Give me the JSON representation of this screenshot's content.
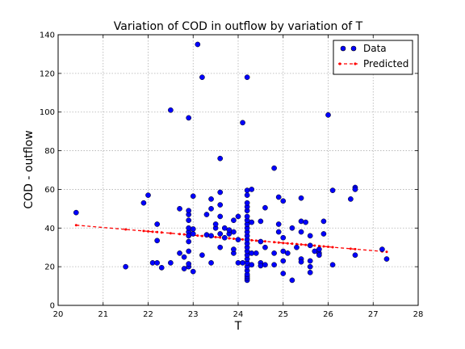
{
  "chart_data": {
    "type": "scatter",
    "title": "Variation of COD in outflow by variation of T",
    "xlabel": "T",
    "ylabel": "COD - outflow",
    "xlim": [
      20,
      28
    ],
    "ylim": [
      0,
      140
    ],
    "xticks": [
      "20",
      "21",
      "22",
      "23",
      "24",
      "25",
      "26",
      "27",
      "28"
    ],
    "yticks": [
      "0",
      "20",
      "40",
      "60",
      "80",
      "100",
      "120",
      "140"
    ],
    "grid": true,
    "legend": "top-right",
    "series": [
      {
        "name": "Data",
        "color": "#0000ff",
        "marker": "circle",
        "points": [
          [
            20.4,
            48
          ],
          [
            21.5,
            20
          ],
          [
            21.9,
            53
          ],
          [
            22.0,
            57
          ],
          [
            22.1,
            22
          ],
          [
            22.2,
            22
          ],
          [
            22.2,
            42
          ],
          [
            22.2,
            33.5
          ],
          [
            22.3,
            19.5
          ],
          [
            22.5,
            22
          ],
          [
            22.5,
            101
          ],
          [
            22.7,
            50
          ],
          [
            22.7,
            27
          ],
          [
            22.8,
            19
          ],
          [
            22.8,
            25
          ],
          [
            22.9,
            20
          ],
          [
            22.9,
            21.5
          ],
          [
            22.9,
            28
          ],
          [
            22.9,
            33
          ],
          [
            22.9,
            38
          ],
          [
            22.9,
            40
          ],
          [
            22.9,
            44
          ],
          [
            22.9,
            47
          ],
          [
            22.9,
            49
          ],
          [
            22.9,
            97
          ],
          [
            22.9,
            36
          ],
          [
            23.0,
            17.5
          ],
          [
            23.0,
            37
          ],
          [
            23.0,
            39.5
          ],
          [
            23.0,
            56.5
          ],
          [
            23.1,
            135
          ],
          [
            23.2,
            118
          ],
          [
            23.2,
            26
          ],
          [
            23.3,
            36.5
          ],
          [
            23.3,
            47
          ],
          [
            23.4,
            22
          ],
          [
            23.4,
            50
          ],
          [
            23.4,
            55
          ],
          [
            23.4,
            36
          ],
          [
            23.5,
            40
          ],
          [
            23.5,
            42
          ],
          [
            23.6,
            30
          ],
          [
            23.6,
            37
          ],
          [
            23.6,
            46
          ],
          [
            23.6,
            52
          ],
          [
            23.6,
            58.5
          ],
          [
            23.6,
            76
          ],
          [
            23.7,
            35
          ],
          [
            23.7,
            40
          ],
          [
            23.8,
            37
          ],
          [
            23.8,
            39
          ],
          [
            23.9,
            27
          ],
          [
            23.9,
            29
          ],
          [
            23.9,
            38
          ],
          [
            23.9,
            44
          ],
          [
            24.0,
            46
          ],
          [
            24.0,
            22
          ],
          [
            24.0,
            34
          ],
          [
            24.1,
            94.5
          ],
          [
            24.1,
            22
          ],
          [
            24.2,
            13
          ],
          [
            24.2,
            14
          ],
          [
            24.2,
            15
          ],
          [
            24.2,
            16
          ],
          [
            24.2,
            18
          ],
          [
            24.2,
            20
          ],
          [
            24.2,
            22
          ],
          [
            24.2,
            24
          ],
          [
            24.2,
            26
          ],
          [
            24.2,
            28
          ],
          [
            24.2,
            30
          ],
          [
            24.2,
            32
          ],
          [
            24.2,
            34
          ],
          [
            24.2,
            36
          ],
          [
            24.2,
            38
          ],
          [
            24.2,
            40
          ],
          [
            24.2,
            42
          ],
          [
            24.2,
            44
          ],
          [
            24.2,
            46
          ],
          [
            24.2,
            49
          ],
          [
            24.2,
            51
          ],
          [
            24.2,
            53
          ],
          [
            24.2,
            57
          ],
          [
            24.2,
            59.5
          ],
          [
            24.2,
            118
          ],
          [
            24.3,
            60
          ],
          [
            24.3,
            43
          ],
          [
            24.3,
            27
          ],
          [
            24.3,
            21
          ],
          [
            24.4,
            27
          ],
          [
            24.5,
            43.5
          ],
          [
            24.5,
            33
          ],
          [
            24.5,
            22
          ],
          [
            24.5,
            20.5
          ],
          [
            24.6,
            50.5
          ],
          [
            24.6,
            30
          ],
          [
            24.6,
            21
          ],
          [
            24.8,
            71
          ],
          [
            24.8,
            27
          ],
          [
            24.8,
            21
          ],
          [
            24.9,
            56
          ],
          [
            24.9,
            42
          ],
          [
            24.9,
            38
          ],
          [
            25.0,
            54
          ],
          [
            25.0,
            35
          ],
          [
            25.0,
            28
          ],
          [
            25.0,
            23
          ],
          [
            25.0,
            16.5
          ],
          [
            25.1,
            27
          ],
          [
            25.2,
            13
          ],
          [
            25.2,
            40
          ],
          [
            25.3,
            30
          ],
          [
            25.4,
            55.5
          ],
          [
            25.4,
            43.5
          ],
          [
            25.4,
            38
          ],
          [
            25.4,
            24
          ],
          [
            25.4,
            22.5
          ],
          [
            25.5,
            43
          ],
          [
            25.6,
            36
          ],
          [
            25.6,
            31
          ],
          [
            25.6,
            23
          ],
          [
            25.6,
            20
          ],
          [
            25.6,
            17
          ],
          [
            25.7,
            28
          ],
          [
            25.8,
            27
          ],
          [
            25.8,
            26
          ],
          [
            25.8,
            29
          ],
          [
            25.9,
            43.5
          ],
          [
            25.9,
            37
          ],
          [
            26.0,
            98.5
          ],
          [
            26.1,
            59.5
          ],
          [
            26.1,
            21
          ],
          [
            26.5,
            55
          ],
          [
            26.6,
            61
          ],
          [
            26.6,
            60
          ],
          [
            26.6,
            26
          ],
          [
            27.2,
            29
          ],
          [
            27.3,
            24
          ]
        ]
      },
      {
        "name": "Predicted",
        "color": "#ff0000",
        "marker": "dot",
        "line": "dashed",
        "x": [
          20.4,
          21.5,
          21.9,
          22.0,
          22.1,
          22.2,
          22.3,
          22.5,
          22.7,
          22.8,
          22.9,
          23.0,
          23.1,
          23.2,
          23.3,
          23.4,
          23.5,
          23.6,
          23.7,
          23.8,
          23.9,
          24.0,
          24.1,
          24.2,
          24.3,
          24.4,
          24.5,
          24.6,
          24.8,
          24.9,
          25.0,
          25.1,
          25.2,
          25.3,
          25.4,
          25.5,
          25.6,
          25.7,
          25.8,
          25.9,
          26.0,
          26.1,
          26.5,
          26.6,
          27.2,
          27.3
        ],
        "y": [
          41.5,
          39.3,
          38.5,
          38.3,
          38.1,
          37.9,
          37.7,
          37.3,
          36.9,
          36.7,
          36.5,
          36.3,
          36.1,
          35.9,
          35.7,
          35.5,
          35.3,
          35.1,
          34.9,
          34.7,
          34.5,
          34.3,
          34.1,
          33.9,
          33.7,
          33.5,
          33.3,
          33.1,
          32.7,
          32.5,
          32.3,
          32.1,
          31.9,
          31.7,
          31.5,
          31.3,
          31.1,
          30.9,
          30.7,
          30.5,
          30.3,
          30.1,
          29.3,
          29.1,
          27.9,
          27.7
        ]
      }
    ]
  }
}
